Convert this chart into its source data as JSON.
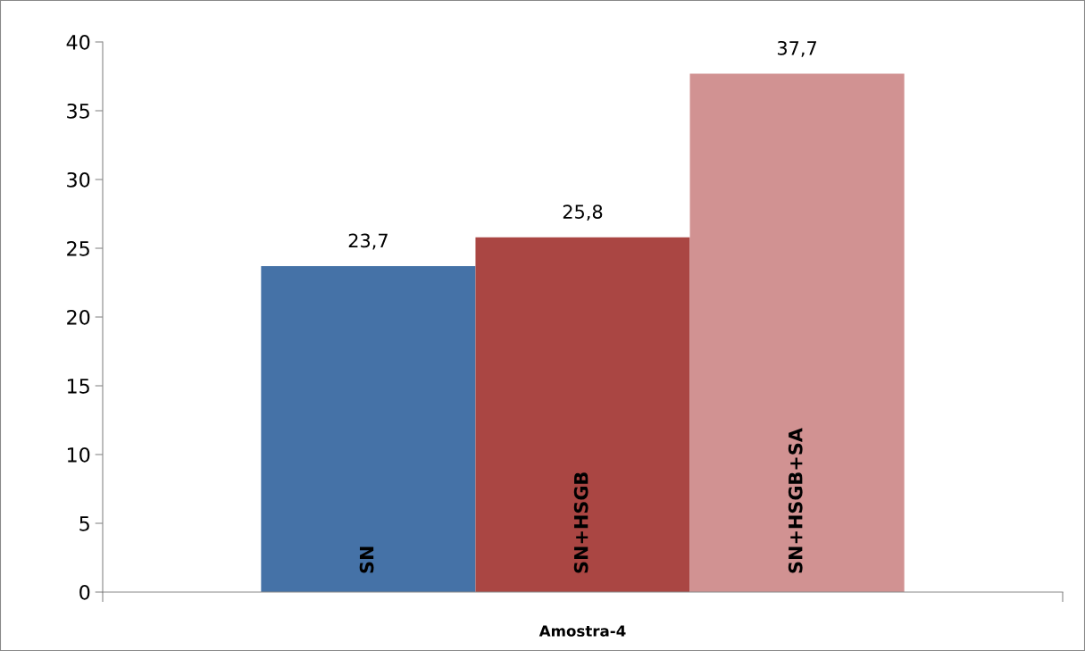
{
  "chart_data": {
    "type": "bar",
    "categories": [
      "Amostra-4"
    ],
    "series": [
      {
        "name": "SN",
        "color": "#4572a7",
        "values": [
          23.7
        ],
        "value_labels": [
          "23,7"
        ]
      },
      {
        "name": "SN+HSGB",
        "color": "#aa4643",
        "values": [
          25.8
        ],
        "value_labels": [
          "25,8"
        ]
      },
      {
        "name": "SN+HSGB+SA",
        "color": "#d19292",
        "values": [
          37.7
        ],
        "value_labels": [
          "37,7"
        ]
      }
    ],
    "ylim": [
      0,
      40
    ],
    "yticks": [
      0,
      5,
      10,
      15,
      20,
      25,
      30,
      35,
      40
    ],
    "grid": false,
    "legend": false
  }
}
